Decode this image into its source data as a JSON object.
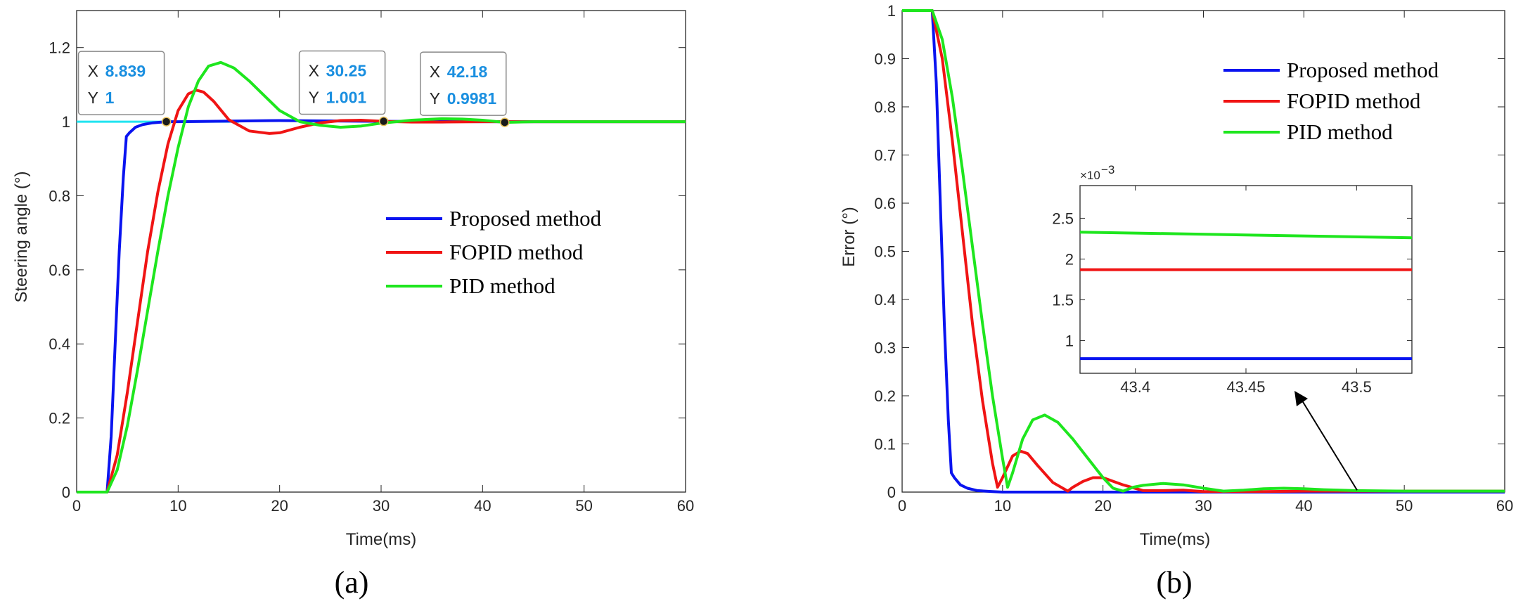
{
  "chart_data": [
    {
      "type": "line",
      "id": "a",
      "panel_label": "(a)",
      "xlabel": "Time(ms)",
      "ylabel": "Steering angle (°)",
      "xlim": [
        0,
        60
      ],
      "ylim": [
        0,
        1.3
      ],
      "xticks": [
        0,
        10,
        20,
        30,
        40,
        50,
        60
      ],
      "yticks": [
        0,
        0.2,
        0.4,
        0.6,
        0.8,
        1,
        1.2
      ],
      "ytick_labels": [
        "0",
        "0.2",
        "0.4",
        "0.6",
        "0.8",
        "1",
        "1.2"
      ],
      "grid": false,
      "legend_position": "center-right",
      "reference_line": {
        "y": 1,
        "color": "#22e4f0"
      },
      "series": [
        {
          "name": "Proposed method",
          "color": "#0a14f0",
          "x": [
            0,
            3.0,
            3.4,
            3.8,
            4.2,
            4.6,
            4.9,
            5.2,
            5.8,
            6.5,
            7.5,
            8.839,
            10,
            20,
            30,
            40,
            50,
            60
          ],
          "y": [
            0,
            0,
            0.15,
            0.4,
            0.65,
            0.85,
            0.96,
            0.97,
            0.985,
            0.992,
            0.997,
            1,
            1.0,
            1.003,
            1.001,
            1.0,
            1.0,
            1.0
          ]
        },
        {
          "name": "FOPID method",
          "color": "#f01414",
          "x": [
            0,
            3.0,
            4,
            5,
            6,
            7,
            8,
            9,
            10,
            11,
            11.8,
            12.5,
            13.5,
            15,
            17,
            19,
            20,
            22,
            24,
            26,
            28,
            30.25,
            33,
            36,
            40,
            50,
            60
          ],
          "y": [
            0,
            0,
            0.1,
            0.27,
            0.46,
            0.65,
            0.81,
            0.94,
            1.03,
            1.075,
            1.085,
            1.08,
            1.055,
            1.005,
            0.975,
            0.968,
            0.97,
            0.985,
            0.997,
            1.003,
            1.004,
            1.001,
            0.999,
            0.999,
            1.0,
            1.0,
            1.0
          ]
        },
        {
          "name": "PID method",
          "color": "#1ee61e",
          "x": [
            0,
            3.0,
            4,
            5,
            6,
            7,
            8,
            9,
            10,
            11,
            12,
            13,
            14.2,
            15.5,
            17,
            18.5,
            20,
            22,
            24,
            26,
            28,
            30,
            33,
            36,
            38,
            40,
            42.18,
            45,
            50,
            60
          ],
          "y": [
            0,
            0,
            0.06,
            0.18,
            0.33,
            0.49,
            0.65,
            0.8,
            0.93,
            1.04,
            1.11,
            1.15,
            1.16,
            1.145,
            1.11,
            1.07,
            1.03,
            1.0,
            0.99,
            0.985,
            0.988,
            0.996,
            1.004,
            1.008,
            1.007,
            1.004,
            0.9981,
            1.0,
            1.0,
            1.0
          ]
        }
      ],
      "datatips": [
        {
          "x_key": "X",
          "x_value": "8.839",
          "y_key": "Y",
          "y_value": "1",
          "x": 8.839,
          "y": 1
        },
        {
          "x_key": "X",
          "x_value": "30.25",
          "y_key": "Y",
          "y_value": "1.001",
          "x": 30.25,
          "y": 1.001
        },
        {
          "x_key": "X",
          "x_value": "42.18",
          "y_key": "Y",
          "y_value": "0.9981",
          "x": 42.18,
          "y": 0.9981
        }
      ]
    },
    {
      "type": "line",
      "id": "b",
      "panel_label": "(b)",
      "xlabel": "Time(ms)",
      "ylabel": "Error (°)",
      "xlim": [
        0,
        60
      ],
      "ylim": [
        0,
        1
      ],
      "xticks": [
        0,
        10,
        20,
        30,
        40,
        50,
        60
      ],
      "yticks": [
        0,
        0.1,
        0.2,
        0.3,
        0.4,
        0.5,
        0.6,
        0.7,
        0.8,
        0.9,
        1
      ],
      "ytick_labels": [
        "0",
        "0.1",
        "0.2",
        "0.3",
        "0.4",
        "0.5",
        "0.6",
        "0.7",
        "0.8",
        "0.9",
        "1"
      ],
      "grid": false,
      "legend_position": "top-right",
      "series": [
        {
          "name": "Proposed method",
          "color": "#0a14f0",
          "x": [
            0,
            3.0,
            3.4,
            3.8,
            4.2,
            4.6,
            4.9,
            5.2,
            5.8,
            6.5,
            7.5,
            9,
            10,
            20,
            30,
            40,
            50,
            60
          ],
          "y": [
            1,
            1,
            0.85,
            0.6,
            0.35,
            0.15,
            0.04,
            0.03,
            0.015,
            0.008,
            0.003,
            0.001,
            0,
            0,
            0,
            0,
            0,
            0
          ]
        },
        {
          "name": "FOPID method",
          "color": "#f01414",
          "x": [
            0,
            3.0,
            4,
            5,
            6,
            7,
            8,
            9,
            9.5,
            10,
            11,
            11.8,
            12.5,
            13.5,
            15,
            16.5,
            17,
            18,
            19,
            20,
            22,
            24,
            26,
            28,
            30,
            33,
            36,
            40,
            50,
            60
          ],
          "y": [
            1,
            1,
            0.9,
            0.73,
            0.54,
            0.35,
            0.19,
            0.06,
            0.01,
            0.03,
            0.075,
            0.085,
            0.08,
            0.055,
            0.02,
            0.002,
            0.01,
            0.022,
            0.03,
            0.03,
            0.015,
            0.003,
            0.003,
            0.004,
            0.001,
            0.001,
            0.001,
            0.002,
            0.002,
            0.002
          ]
        },
        {
          "name": "PID method",
          "color": "#1ee61e",
          "x": [
            0,
            3.0,
            4,
            5,
            6,
            7,
            8,
            9,
            10,
            10.5,
            11,
            12,
            13,
            14.2,
            15.5,
            17,
            18.5,
            20,
            21,
            22,
            23,
            24,
            26,
            28,
            30,
            32,
            34,
            36,
            38,
            40,
            42,
            45,
            50,
            60
          ],
          "y": [
            1,
            1,
            0.94,
            0.82,
            0.67,
            0.51,
            0.35,
            0.2,
            0.07,
            0.01,
            0.04,
            0.11,
            0.15,
            0.16,
            0.145,
            0.11,
            0.07,
            0.03,
            0.008,
            0.002,
            0.01,
            0.014,
            0.018,
            0.015,
            0.008,
            0.002,
            0.004,
            0.007,
            0.008,
            0.007,
            0.005,
            0.003,
            0.002,
            0.002
          ]
        }
      ],
      "inset": {
        "xlim": [
          43.375,
          43.525
        ],
        "ylim": [
          0.6,
          2.9
        ],
        "xticks": [
          43.4,
          43.45,
          43.5
        ],
        "yticks": [
          1,
          1.5,
          2,
          2.5
        ],
        "ytick_labels": [
          "1",
          "1.5",
          "2",
          "2.5"
        ],
        "multiplier": {
          "base": "×10",
          "exponent": "−3"
        },
        "series": [
          {
            "name": "Proposed method",
            "color": "#0a14f0",
            "x": [
              43.375,
              43.525
            ],
            "y": [
              0.78,
              0.78
            ]
          },
          {
            "name": "FOPID method",
            "color": "#f01414",
            "x": [
              43.375,
              43.525
            ],
            "y": [
              1.87,
              1.87
            ]
          },
          {
            "name": "PID method",
            "color": "#1ee61e",
            "x": [
              43.375,
              43.525
            ],
            "y": [
              2.33,
              2.26
            ]
          }
        ]
      }
    }
  ]
}
